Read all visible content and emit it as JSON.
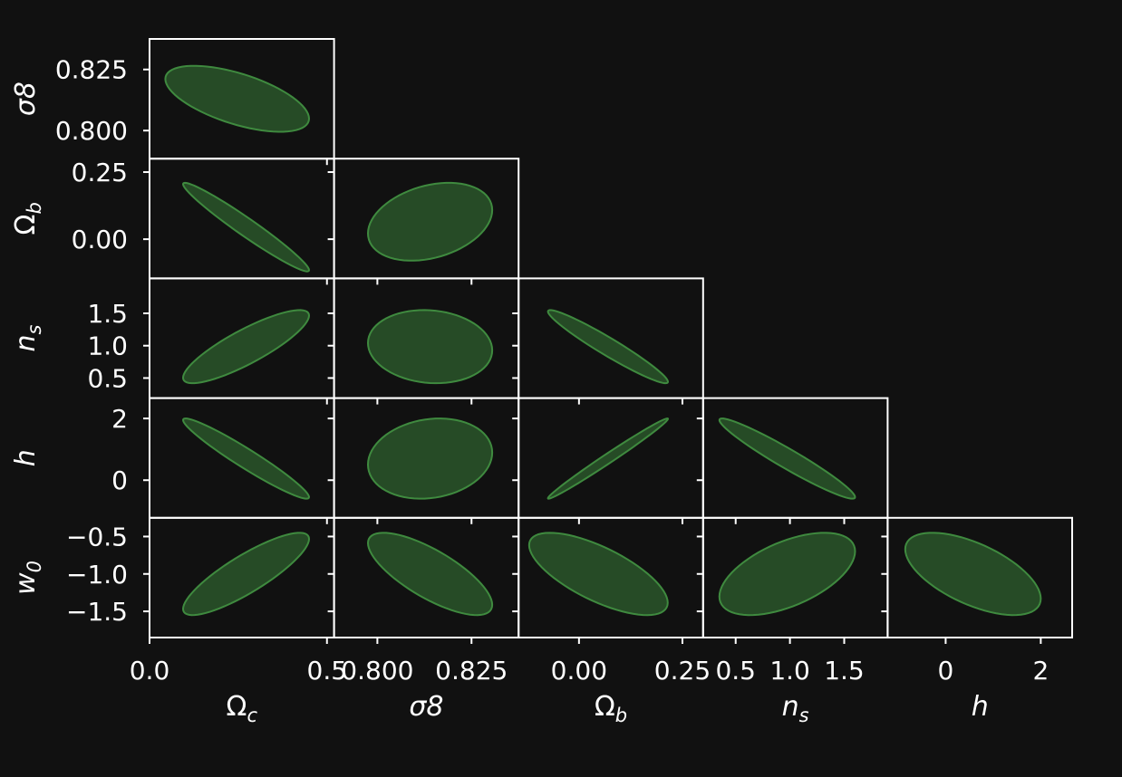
{
  "chart_data": {
    "type": "corner",
    "parameters": [
      {
        "key": "Oc",
        "base": "Ω",
        "sub": "c",
        "italic_base": false
      },
      {
        "key": "s8",
        "base": "σ8",
        "sub": "",
        "italic_base": true
      },
      {
        "key": "Ob",
        "base": "Ω",
        "sub": "b",
        "italic_base": false
      },
      {
        "key": "ns",
        "base": "n",
        "sub": "s",
        "italic_base": true
      },
      {
        "key": "h",
        "base": "h",
        "sub": "",
        "italic_base": true
      },
      {
        "key": "w0",
        "base": "w",
        "sub": "0",
        "italic_base": true
      }
    ],
    "x_axes": [
      {
        "param": "Oc",
        "range": [
          0.0,
          0.52
        ],
        "ticks": [
          0.0,
          0.5
        ],
        "tick_labels": [
          "0.0",
          "0.5"
        ]
      },
      {
        "param": "s8",
        "range": [
          0.7885,
          0.8375
        ],
        "ticks": [
          0.8,
          0.825
        ],
        "tick_labels": [
          "0.800",
          "0.825"
        ]
      },
      {
        "param": "Ob",
        "range": [
          -0.146,
          0.3
        ],
        "ticks": [
          0.0,
          0.25
        ],
        "tick_labels": [
          "0.00",
          "0.25"
        ]
      },
      {
        "param": "ns",
        "range": [
          0.2,
          1.9
        ],
        "ticks": [
          0.5,
          1.0,
          1.5
        ],
        "tick_labels": [
          "0.5",
          "1.0",
          "1.5"
        ]
      },
      {
        "param": "h",
        "range": [
          -1.22,
          2.66
        ],
        "ticks": [
          0,
          2
        ],
        "tick_labels": [
          "0",
          "2"
        ]
      }
    ],
    "y_axes": [
      {
        "param": "s8",
        "range": [
          0.7885,
          0.8375
        ],
        "ticks": [
          0.8,
          0.825
        ],
        "tick_labels": [
          "0.800",
          "0.825"
        ]
      },
      {
        "param": "Ob",
        "range": [
          -0.146,
          0.3
        ],
        "ticks": [
          0.0,
          0.25
        ],
        "tick_labels": [
          "0.00",
          "0.25"
        ]
      },
      {
        "param": "ns",
        "range": [
          0.19,
          2.04
        ],
        "ticks": [
          0.5,
          1.0,
          1.5
        ],
        "tick_labels": [
          "0.5",
          "1.0",
          "1.5"
        ]
      },
      {
        "param": "h",
        "range": [
          -1.22,
          2.66
        ],
        "ticks": [
          0,
          2
        ],
        "tick_labels": [
          "0",
          "2"
        ]
      },
      {
        "param": "w0",
        "range": [
          -1.85,
          -0.25
        ],
        "ticks": [
          -0.5,
          -1.0,
          -1.5
        ],
        "tick_labels": [
          "−0.5",
          "−1.0",
          "−1.5"
        ]
      }
    ],
    "ellipses": [
      {
        "row": 0,
        "col": 0,
        "x": [
          0.045,
          0.45
        ],
        "y": [
          0.7995,
          0.8265
        ],
        "center": [
          0.247,
          0.813
        ],
        "correlation": -0.6
      },
      {
        "row": 1,
        "col": 0,
        "x": [
          0.095,
          0.45
        ],
        "y": [
          -0.12,
          0.21
        ],
        "center": [
          0.272,
          0.045
        ],
        "correlation": -0.97
      },
      {
        "row": 1,
        "col": 1,
        "x": [
          0.7975,
          0.8305
        ],
        "y": [
          -0.08,
          0.21
        ],
        "center": [
          0.814,
          0.065
        ],
        "correlation": 0.3
      },
      {
        "row": 2,
        "col": 0,
        "x": [
          0.095,
          0.45
        ],
        "y": [
          0.42,
          1.55
        ],
        "center": [
          0.272,
          0.985
        ],
        "correlation": 0.85
      },
      {
        "row": 2,
        "col": 1,
        "x": [
          0.7975,
          0.8305
        ],
        "y": [
          0.42,
          1.55
        ],
        "center": [
          0.814,
          0.985
        ],
        "correlation": -0.1
      },
      {
        "row": 2,
        "col": 2,
        "x": [
          -0.075,
          0.215
        ],
        "y": [
          0.42,
          1.55
        ],
        "center": [
          0.07,
          0.985
        ],
        "correlation": -0.96
      },
      {
        "row": 3,
        "col": 0,
        "x": [
          0.095,
          0.45
        ],
        "y": [
          -0.6,
          2.0
        ],
        "center": [
          0.272,
          0.7
        ],
        "correlation": -0.96
      },
      {
        "row": 3,
        "col": 1,
        "x": [
          0.7975,
          0.8305
        ],
        "y": [
          -0.6,
          2.0
        ],
        "center": [
          0.814,
          0.7
        ],
        "correlation": 0.15
      },
      {
        "row": 3,
        "col": 2,
        "x": [
          -0.075,
          0.215
        ],
        "y": [
          -0.6,
          2.0
        ],
        "center": [
          0.07,
          0.7
        ],
        "correlation": 0.99
      },
      {
        "row": 3,
        "col": 3,
        "x": [
          0.35,
          1.6
        ],
        "y": [
          -0.6,
          2.0
        ],
        "center": [
          0.975,
          0.7
        ],
        "correlation": -0.96
      },
      {
        "row": 4,
        "col": 0,
        "x": [
          0.095,
          0.45
        ],
        "y": [
          -1.55,
          -0.45
        ],
        "center": [
          0.272,
          -1.0
        ],
        "correlation": 0.85
      },
      {
        "row": 4,
        "col": 1,
        "x": [
          0.7975,
          0.8305
        ],
        "y": [
          -1.55,
          -0.45
        ],
        "center": [
          0.814,
          -1.0
        ],
        "correlation": -0.75
      },
      {
        "row": 4,
        "col": 2,
        "x": [
          -0.12,
          0.215
        ],
        "y": [
          -1.55,
          -0.45
        ],
        "center": [
          0.047,
          -1.0
        ],
        "correlation": -0.7
      },
      {
        "row": 4,
        "col": 3,
        "x": [
          0.35,
          1.6
        ],
        "y": [
          -1.55,
          -0.45
        ],
        "center": [
          0.975,
          -1.0
        ],
        "correlation": 0.55
      },
      {
        "row": 4,
        "col": 4,
        "x": [
          -0.85,
          2.0
        ],
        "y": [
          -1.55,
          -0.45
        ],
        "center": [
          0.575,
          -1.0
        ],
        "correlation": -0.6
      }
    ],
    "grid": false,
    "legend": "none",
    "colors": {
      "background": "#111111",
      "frame": "#ffffff",
      "ellipse_fill": "#264b26",
      "ellipse_edge": "#3f8a3f",
      "text": "#ffffff"
    }
  }
}
